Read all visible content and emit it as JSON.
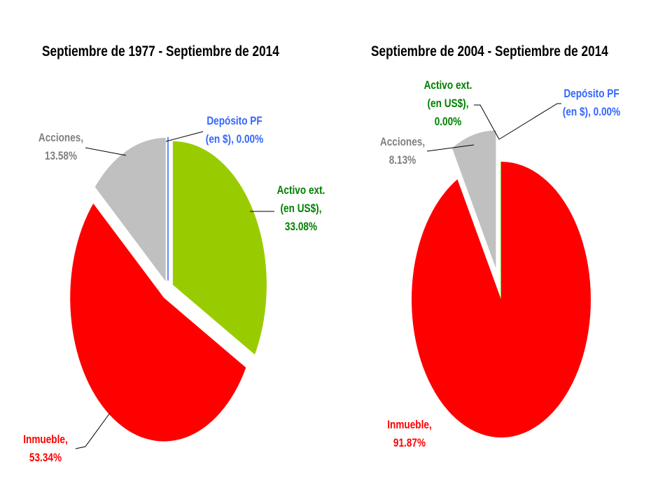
{
  "chart_data": [
    {
      "type": "pie",
      "title": "Septiembre de 1977 - Septiembre de 2014",
      "slices": [
        {
          "name_l1": "Depósito PF",
          "name_l2": "(en $),",
          "label": "0.00%",
          "value": 0.0,
          "color": "#3366ff",
          "text_color": "#3366ff"
        },
        {
          "name_l1": "Activo ext.",
          "name_l2": "(en US$),",
          "label": "33.08%",
          "value": 33.08,
          "color": "#99cc00",
          "text_color": "#008000"
        },
        {
          "name_l1": "Inmueble,",
          "name_l2": "",
          "label": "53.34%",
          "value": 53.34,
          "color": "#ff0000",
          "text_color": "#ff0000"
        },
        {
          "name_l1": "Acciones,",
          "name_l2": "",
          "label": "13.58%",
          "value": 13.58,
          "color": "#c0c0c0",
          "text_color": "#808080"
        }
      ]
    },
    {
      "type": "pie",
      "title": "Septiembre de 2004 - Septiembre de 2014",
      "slices": [
        {
          "name_l1": "Depósito PF",
          "name_l2": "(en $),",
          "label": "0.00%",
          "value": 0.0,
          "color": "#3366ff",
          "text_color": "#3366ff"
        },
        {
          "name_l1": "Activo ext.",
          "name_l2": "(en US$),",
          "label": "0.00%",
          "value": 0.0,
          "color": "#99cc00",
          "text_color": "#008000"
        },
        {
          "name_l1": "Inmueble,",
          "name_l2": "",
          "label": "91.87%",
          "value": 91.87,
          "color": "#ff0000",
          "text_color": "#ff0000"
        },
        {
          "name_l1": "Acciones,",
          "name_l2": "",
          "label": "8.13%",
          "value": 8.13,
          "color": "#c0c0c0",
          "text_color": "#808080"
        }
      ]
    }
  ]
}
